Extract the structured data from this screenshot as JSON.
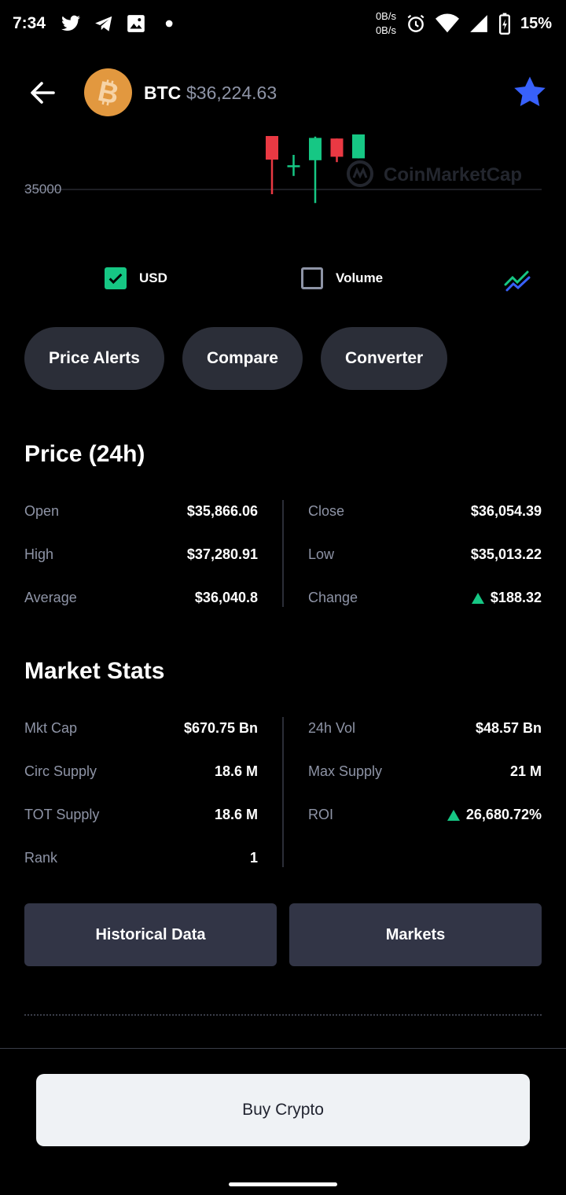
{
  "status_bar": {
    "time": "7:34",
    "net_up": "0B/s",
    "net_down": "0B/s",
    "battery": "15%",
    "icons": [
      "twitter-icon",
      "telegram-icon",
      "image-icon",
      "dot-icon",
      "alarm-icon",
      "wifi-icon",
      "signal-icon",
      "battery-charging-icon"
    ]
  },
  "header": {
    "symbol": "BTC",
    "price": "$36,224.63",
    "back_icon": "arrow-left-icon",
    "fav_icon": "star-icon",
    "logo_icon": "bitcoin-icon"
  },
  "chart_data": {
    "type": "candlestick",
    "y_tick_labels": [
      "35000"
    ],
    "watermark": "CoinMarketCap",
    "colors": {
      "up": "#16c784",
      "down": "#ea3943",
      "grid": "#3a3d48"
    },
    "candles": [
      {
        "direction": "down",
        "open": 36700,
        "close": 35950,
        "high": 36700,
        "low": 34850
      },
      {
        "direction": "up",
        "open": 35730,
        "close": 35770,
        "high": 36100,
        "low": 35430
      },
      {
        "direction": "up",
        "open": 35930,
        "close": 36640,
        "high": 36680,
        "low": 34570
      },
      {
        "direction": "down",
        "open": 36620,
        "close": 36040,
        "high": 36620,
        "low": 35870
      },
      {
        "direction": "up",
        "open": 35990,
        "close": 36750,
        "high": 36750,
        "low": 35990
      }
    ]
  },
  "toggles": {
    "usd": {
      "label": "USD",
      "checked": true
    },
    "volume": {
      "label": "Volume",
      "checked": false
    },
    "chart_type_icon": "line-chart-icon"
  },
  "pills": [
    "Price Alerts",
    "Compare",
    "Converter"
  ],
  "price_24h": {
    "title": "Price (24h)",
    "left": [
      {
        "label": "Open",
        "value": "$35,866.06"
      },
      {
        "label": "High",
        "value": "$37,280.91"
      },
      {
        "label": "Average",
        "value": "$36,040.8"
      }
    ],
    "right": [
      {
        "label": "Close",
        "value": "$36,054.39"
      },
      {
        "label": "Low",
        "value": "$35,013.22"
      },
      {
        "label": "Change",
        "value": "$188.32",
        "trend": "up"
      }
    ]
  },
  "market_stats": {
    "title": "Market Stats",
    "left": [
      {
        "label": "Mkt Cap",
        "value": "$670.75 Bn"
      },
      {
        "label": "Circ Supply",
        "value": "18.6 M"
      },
      {
        "label": "TOT Supply",
        "value": "18.6 M"
      },
      {
        "label": "Rank",
        "value": "1"
      }
    ],
    "right": [
      {
        "label": "24h Vol",
        "value": "$48.57 Bn"
      },
      {
        "label": "Max Supply",
        "value": "21 M"
      },
      {
        "label": "ROI",
        "value": "26,680.72%",
        "trend": "up"
      }
    ]
  },
  "buttons": {
    "historical": "Historical Data",
    "markets": "Markets",
    "buy": "Buy Crypto"
  }
}
